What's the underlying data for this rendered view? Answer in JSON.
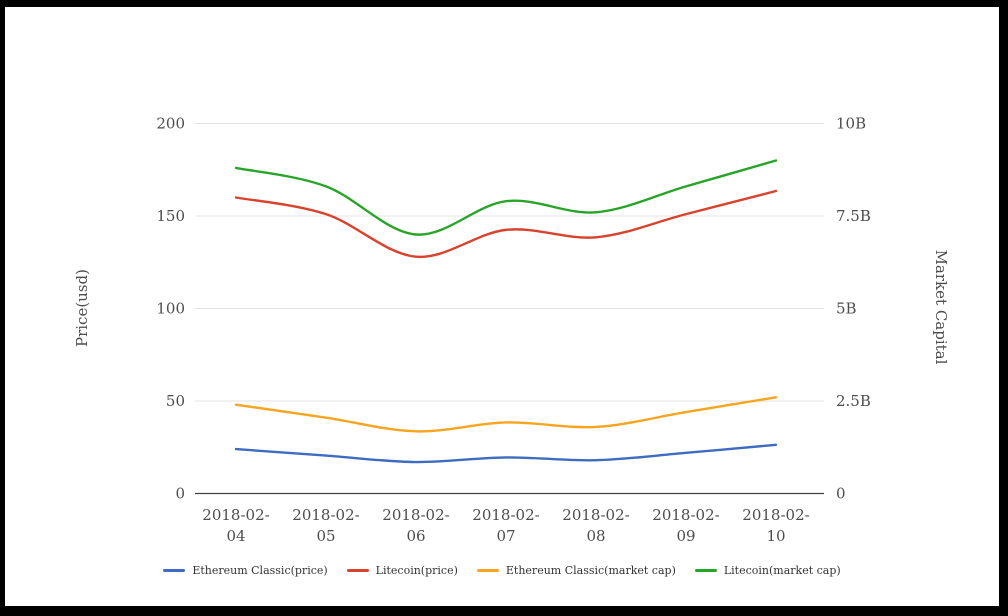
{
  "frame": {
    "border_color": "#000000",
    "background": "#ffffff"
  },
  "chart_data": {
    "type": "line",
    "title": "",
    "x": [
      "2018-02-04",
      "2018-02-05",
      "2018-02-06",
      "2018-02-07",
      "2018-02-08",
      "2018-02-09",
      "2018-02-10"
    ],
    "left_axis": {
      "title": "Price(usd)",
      "tick_labels": [
        "0",
        "50",
        "100",
        "150",
        "200"
      ],
      "tick_values": [
        0,
        50,
        100,
        150,
        200
      ],
      "range": [
        0,
        200
      ]
    },
    "right_axis": {
      "title": "Market Capital",
      "tick_labels": [
        "0",
        "2.5B",
        "5B",
        "7.5B",
        "10B"
      ],
      "tick_values": [
        0,
        2.5,
        5,
        7.5,
        10
      ],
      "range": [
        0,
        10
      ]
    },
    "series": [
      {
        "name": "Ethereum Classic(price)",
        "axis": "left",
        "color": "#3d6cc0",
        "values": [
          24,
          20.5,
          17,
          19.5,
          18,
          22,
          26.3
        ]
      },
      {
        "name": "Litecoin(price)",
        "axis": "left",
        "color": "#d9432e",
        "values": [
          160,
          151,
          128,
          142.5,
          138.5,
          151,
          163.5
        ]
      },
      {
        "name": "Ethereum Classic(market cap)",
        "axis": "right",
        "color": "#f7a41f",
        "values": [
          2.4,
          2.05,
          1.68,
          1.92,
          1.8,
          2.2,
          2.6
        ]
      },
      {
        "name": "Litecoin(market cap)",
        "axis": "right",
        "color": "#28a428",
        "values": [
          8.8,
          8.3,
          7.0,
          7.9,
          7.6,
          8.3,
          9.0
        ]
      }
    ],
    "grid": true,
    "legend_position": "bottom",
    "colors": {
      "gridline": "#e3e3e3",
      "zero_axis": "#414141",
      "tick_text": "#4d4d4d",
      "legend_text": "#333333"
    }
  }
}
